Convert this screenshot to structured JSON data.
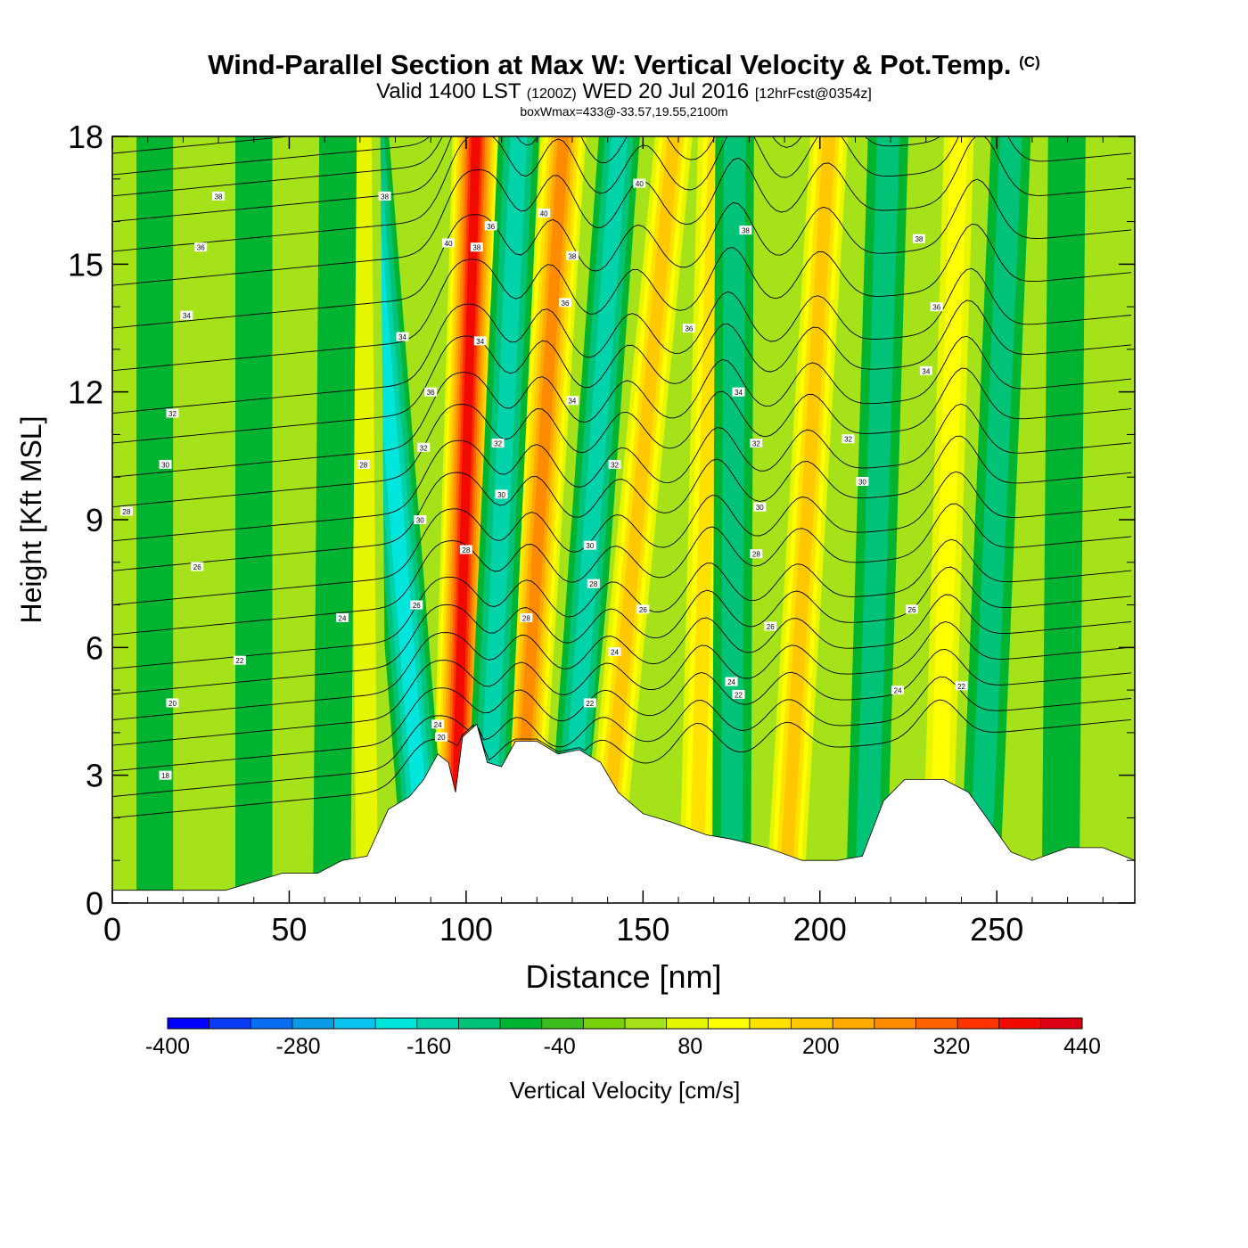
{
  "header": {
    "title": "Wind-Parallel Section at Max W: Vertical Velocity & Pot.Temp.",
    "copyright": "(C)",
    "subtitle_main": "Valid 1400 LST",
    "subtitle_utc": "(1200Z)",
    "subtitle_date": "WED 20 Jul 2016",
    "subtitle_fcst": "[12hrFcst@0354z]",
    "box_w_max": "boxWmax=433@-33.57,19.55,2100m"
  },
  "colors": {
    "background_field": "#a6e21a",
    "terrain": "#ffffff",
    "contour": "#000000"
  },
  "chart_data": {
    "type": "heatmap",
    "xlabel": "Distance [nm]",
    "ylabel": "Height [Kft MSL]",
    "xlim": [
      0,
      289
    ],
    "ylim": [
      0,
      18
    ],
    "x_ticks": [
      "0",
      "50",
      "100",
      "150",
      "200",
      "250"
    ],
    "x_tick_values": [
      0,
      50,
      100,
      150,
      200,
      250
    ],
    "y_ticks": [
      "0",
      "3",
      "6",
      "9",
      "12",
      "15",
      "18"
    ],
    "y_tick_values": [
      0,
      3,
      6,
      9,
      12,
      15,
      18
    ],
    "colorbar": {
      "label": "Vertical Velocity [cm/s]",
      "min": -400,
      "max": 440,
      "step": 40,
      "tick_labels": [
        "-400",
        "-280",
        "-160",
        "-40",
        "80",
        "200",
        "320",
        "440"
      ],
      "tick_values": [
        -400,
        -280,
        -160,
        -40,
        80,
        200,
        320,
        440
      ],
      "colors": [
        "#0000ff",
        "#0a3cf5",
        "#0a6ef5",
        "#0a9be6",
        "#0ac3f0",
        "#00e6dc",
        "#00d2aa",
        "#00c378",
        "#00b432",
        "#3cbe1e",
        "#78d20a",
        "#a6e21a",
        "#e6f500",
        "#ffff00",
        "#ffe100",
        "#ffc800",
        "#ffaa00",
        "#ff8c00",
        "#ff6400",
        "#ff3200",
        "#f00a00",
        "#dc0014"
      ]
    },
    "terrain_profile": {
      "x": [
        0,
        32,
        48,
        58,
        65,
        72,
        78,
        84,
        88,
        92,
        95,
        97,
        99,
        103,
        106,
        110,
        114,
        120,
        126,
        132,
        138,
        143,
        150,
        158,
        168,
        175,
        185,
        195,
        205,
        212,
        218,
        224,
        235,
        242,
        248,
        254,
        260,
        270,
        280,
        289
      ],
      "height": [
        0.3,
        0.3,
        0.7,
        0.7,
        1.0,
        1.1,
        2.2,
        2.5,
        2.9,
        3.5,
        3.3,
        2.6,
        3.9,
        4.2,
        3.3,
        3.2,
        3.8,
        3.8,
        3.5,
        3.6,
        3.3,
        2.6,
        2.1,
        1.9,
        1.6,
        1.5,
        1.3,
        1.0,
        1.0,
        1.1,
        2.4,
        2.9,
        2.9,
        2.6,
        1.9,
        1.2,
        1.0,
        1.3,
        1.3,
        1.0
      ]
    },
    "w_bands": [
      {
        "x_base": 96.5,
        "tilt": 0.35,
        "value": 400
      },
      {
        "x_base": 89.0,
        "tilt": -0.95,
        "value": -180
      },
      {
        "x_base": 114.0,
        "tilt": 0.75,
        "value": 300
      },
      {
        "x_base": 105.0,
        "tilt": 0.55,
        "value": -120
      },
      {
        "x_base": 128.0,
        "tilt": 0.85,
        "value": -120
      },
      {
        "x_base": 138.0,
        "tilt": 1.15,
        "value": 200
      },
      {
        "x_base": 165.0,
        "tilt": 0.3,
        "value": 180
      },
      {
        "x_base": 175.0,
        "tilt": 0.05,
        "value": -80
      },
      {
        "x_base": 190.0,
        "tilt": 0.7,
        "value": 200
      },
      {
        "x_base": 213.0,
        "tilt": 0.35,
        "value": -110
      },
      {
        "x_base": 233.0,
        "tilt": 0.35,
        "value": 150
      },
      {
        "x_base": 245.0,
        "tilt": 0.5,
        "value": -100
      },
      {
        "x_base": 72.0,
        "tilt": -0.1,
        "value": 90
      },
      {
        "x_base": 62.0,
        "tilt": 0.1,
        "value": -60
      },
      {
        "x_base": 40.0,
        "tilt": 0.0,
        "value": -50
      },
      {
        "x_base": 12.0,
        "tilt": 0.0,
        "value": -45
      },
      {
        "x_base": 268.0,
        "tilt": 0.1,
        "value": -60
      }
    ],
    "theta_contours": {
      "base_values": [
        19,
        20,
        21,
        22,
        23,
        24,
        25,
        26,
        27,
        28,
        29,
        30,
        31,
        32,
        33,
        34,
        35,
        36,
        37,
        38,
        39,
        40,
        41
      ],
      "left_heights": [
        2.0,
        2.5,
        3.1,
        3.7,
        4.3,
        4.9,
        5.5,
        6.3,
        7.0,
        7.8,
        8.5,
        9.3,
        10.0,
        10.8,
        11.5,
        12.5,
        13.5,
        14.5,
        15.3,
        16.0,
        16.6,
        17.1,
        17.6
      ],
      "label_samples": [
        {
          "x": 15,
          "y": 3.0,
          "text": "18"
        },
        {
          "x": 17,
          "y": 4.7,
          "text": "20"
        },
        {
          "x": 36,
          "y": 5.7,
          "text": "22"
        },
        {
          "x": 24,
          "y": 7.9,
          "text": "26"
        },
        {
          "x": 4,
          "y": 9.2,
          "text": "28"
        },
        {
          "x": 15,
          "y": 10.3,
          "text": "30"
        },
        {
          "x": 17,
          "y": 11.5,
          "text": "32"
        },
        {
          "x": 21,
          "y": 13.8,
          "text": "34"
        },
        {
          "x": 25,
          "y": 15.4,
          "text": "36"
        },
        {
          "x": 30,
          "y": 16.6,
          "text": "38"
        },
        {
          "x": 65,
          "y": 6.7,
          "text": "24"
        },
        {
          "x": 71,
          "y": 10.3,
          "text": "28"
        },
        {
          "x": 82,
          "y": 13.3,
          "text": "34"
        },
        {
          "x": 77,
          "y": 16.6,
          "text": "38"
        },
        {
          "x": 90,
          "y": 12.0,
          "text": "36"
        },
        {
          "x": 88,
          "y": 10.7,
          "text": "32"
        },
        {
          "x": 87,
          "y": 9.0,
          "text": "30"
        },
        {
          "x": 86,
          "y": 7.0,
          "text": "26"
        },
        {
          "x": 92,
          "y": 4.2,
          "text": "24"
        },
        {
          "x": 93,
          "y": 3.9,
          "text": "20"
        },
        {
          "x": 95,
          "y": 15.5,
          "text": "40"
        },
        {
          "x": 100,
          "y": 8.3,
          "text": "28"
        },
        {
          "x": 103,
          "y": 15.4,
          "text": "38"
        },
        {
          "x": 107,
          "y": 15.9,
          "text": "36"
        },
        {
          "x": 104,
          "y": 13.2,
          "text": "34"
        },
        {
          "x": 109,
          "y": 10.8,
          "text": "32"
        },
        {
          "x": 110,
          "y": 9.6,
          "text": "30"
        },
        {
          "x": 117,
          "y": 6.7,
          "text": "28"
        },
        {
          "x": 122,
          "y": 16.2,
          "text": "40"
        },
        {
          "x": 130,
          "y": 15.2,
          "text": "38"
        },
        {
          "x": 128,
          "y": 14.1,
          "text": "36"
        },
        {
          "x": 130,
          "y": 11.8,
          "text": "34"
        },
        {
          "x": 135,
          "y": 8.4,
          "text": "30"
        },
        {
          "x": 136,
          "y": 7.5,
          "text": "28"
        },
        {
          "x": 142,
          "y": 10.3,
          "text": "32"
        },
        {
          "x": 142,
          "y": 5.9,
          "text": "24"
        },
        {
          "x": 135,
          "y": 4.7,
          "text": "22"
        },
        {
          "x": 150,
          "y": 6.9,
          "text": "26"
        },
        {
          "x": 149,
          "y": 16.9,
          "text": "40"
        },
        {
          "x": 179,
          "y": 15.8,
          "text": "38"
        },
        {
          "x": 163,
          "y": 13.5,
          "text": "36"
        },
        {
          "x": 177,
          "y": 12.0,
          "text": "34"
        },
        {
          "x": 182,
          "y": 10.8,
          "text": "32"
        },
        {
          "x": 183,
          "y": 9.3,
          "text": "30"
        },
        {
          "x": 182,
          "y": 8.2,
          "text": "28"
        },
        {
          "x": 186,
          "y": 6.5,
          "text": "26"
        },
        {
          "x": 175,
          "y": 5.2,
          "text": "24"
        },
        {
          "x": 177,
          "y": 4.9,
          "text": "22"
        },
        {
          "x": 208,
          "y": 10.9,
          "text": "32"
        },
        {
          "x": 212,
          "y": 9.9,
          "text": "30"
        },
        {
          "x": 226,
          "y": 6.9,
          "text": "26"
        },
        {
          "x": 222,
          "y": 5.0,
          "text": "24"
        },
        {
          "x": 240,
          "y": 5.1,
          "text": "22"
        },
        {
          "x": 228,
          "y": 15.6,
          "text": "38"
        },
        {
          "x": 230,
          "y": 12.5,
          "text": "34"
        },
        {
          "x": 233,
          "y": 14.0,
          "text": "36"
        }
      ]
    }
  }
}
